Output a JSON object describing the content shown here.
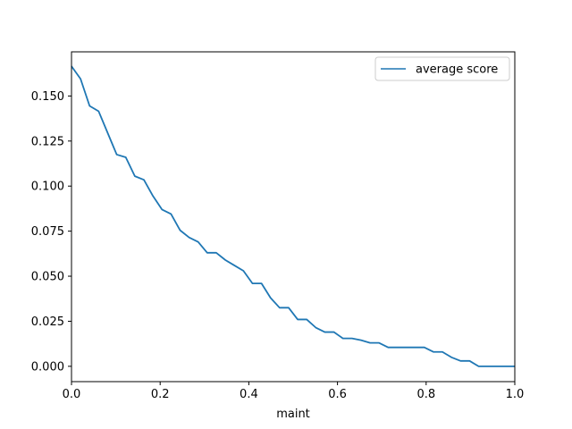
{
  "chart_data": {
    "type": "line",
    "title": "",
    "xlabel": "maint",
    "ylabel": "",
    "xlim": [
      0.0,
      1.0
    ],
    "ylim": [
      -0.0085,
      0.1745
    ],
    "xticks": [
      0.0,
      0.2,
      0.4,
      0.6,
      0.8,
      1.0
    ],
    "xtick_labels": [
      "0.0",
      "0.2",
      "0.4",
      "0.6",
      "0.8",
      "1.0"
    ],
    "yticks": [
      0.0,
      0.025,
      0.05,
      0.075,
      0.1,
      0.125,
      0.15
    ],
    "ytick_labels": [
      "0.000",
      "0.025",
      "0.050",
      "0.075",
      "0.100",
      "0.125",
      "0.150"
    ],
    "grid": false,
    "legend_position": "top-right",
    "colors": {
      "series": "#1f77b4",
      "axes": "#000000",
      "background": "#ffffff"
    },
    "series": [
      {
        "name": "average score",
        "x": [
          0.0,
          0.0204,
          0.0408,
          0.0612,
          0.0816,
          0.102,
          0.1224,
          0.1429,
          0.1633,
          0.1837,
          0.2041,
          0.2245,
          0.2449,
          0.2653,
          0.2857,
          0.3061,
          0.3265,
          0.3469,
          0.3673,
          0.3878,
          0.4082,
          0.4286,
          0.449,
          0.4694,
          0.4898,
          0.5102,
          0.5306,
          0.551,
          0.5714,
          0.5918,
          0.6122,
          0.6327,
          0.6531,
          0.6735,
          0.6939,
          0.7143,
          0.7347,
          0.7551,
          0.7755,
          0.7959,
          0.8163,
          0.8367,
          0.8571,
          0.8776,
          0.898,
          0.9184,
          0.9388,
          0.9592,
          0.9796,
          1.0
        ],
        "values": [
          0.1665,
          0.1595,
          0.1445,
          0.1415,
          0.1295,
          0.1175,
          0.116,
          0.1055,
          0.1035,
          0.0945,
          0.087,
          0.0845,
          0.0755,
          0.0715,
          0.069,
          0.063,
          0.063,
          0.059,
          0.056,
          0.053,
          0.046,
          0.046,
          0.038,
          0.0325,
          0.0325,
          0.026,
          0.026,
          0.0215,
          0.019,
          0.019,
          0.0155,
          0.0155,
          0.0145,
          0.013,
          0.013,
          0.0105,
          0.0105,
          0.0105,
          0.0105,
          0.0105,
          0.008,
          0.008,
          0.005,
          0.003,
          0.003,
          0.0,
          0.0,
          0.0,
          0.0,
          0.0
        ]
      }
    ]
  }
}
